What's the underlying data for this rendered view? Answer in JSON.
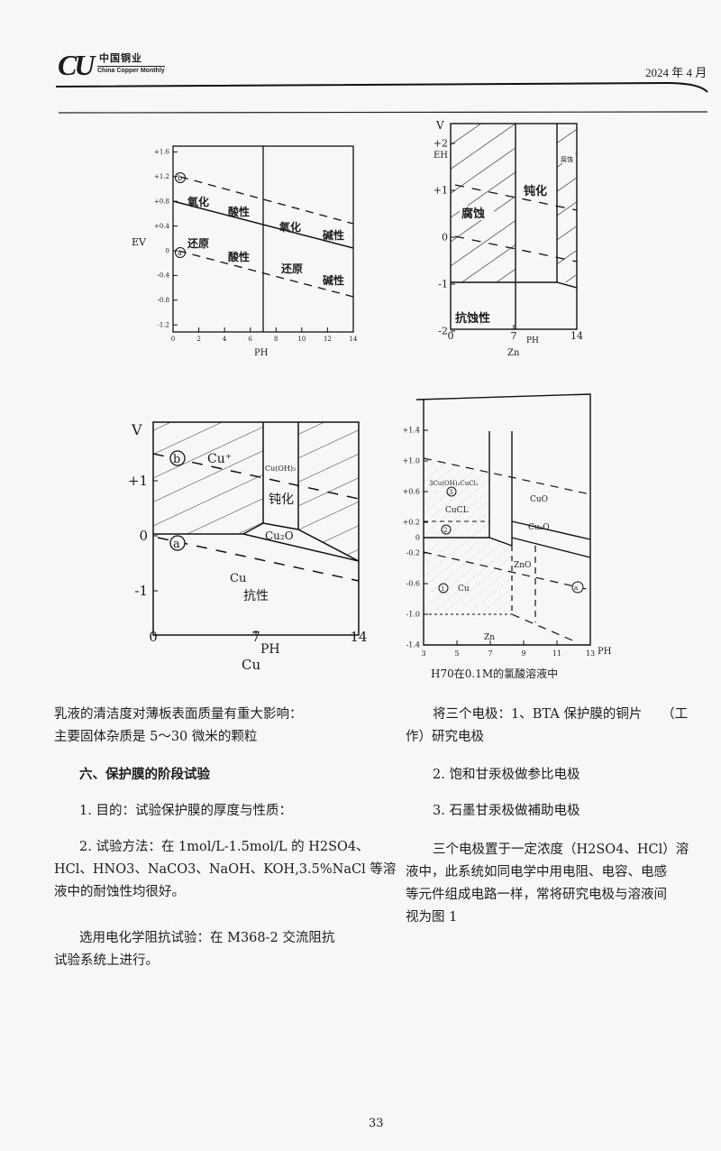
{
  "header": {
    "logo_mark": "CU",
    "logo_cn": "中国铜业",
    "logo_en": "China Copper Monthly",
    "issue_date": "2024 年 4 月"
  },
  "figure1": {
    "y_axis_label": "EV",
    "x_axis_label": "PH",
    "y_ticks": [
      "+1.6",
      "+1.2",
      "+0.8",
      "+0.4",
      "0",
      "-0.4",
      "-0.8",
      "-1.2"
    ],
    "y_tick_values": [
      1.6,
      1.2,
      0.8,
      0.4,
      0,
      -0.4,
      -0.8,
      -1.2
    ],
    "x_ticks": [
      "0",
      "2",
      "4",
      "6",
      "8",
      "10",
      "12",
      "14"
    ],
    "x_tick_values": [
      0,
      2,
      4,
      6,
      8,
      10,
      12,
      14
    ],
    "marker_b": "b",
    "marker_a": "a",
    "labels": {
      "oxidation_acid_1": "氧化",
      "oxidation_acid_2": "酸性",
      "oxidation_base_1": "氧化",
      "oxidation_base_2": "碱性",
      "reduction_acid_1": "还原",
      "reduction_acid_2": "酸性",
      "reduction_base_1": "还原",
      "reduction_base_2": "碱性"
    }
  },
  "figure2": {
    "y_axis_label_v": "V",
    "y_axis_label_eh": "EH",
    "x_axis_label": "PH",
    "element": "Zn",
    "y_ticks": [
      "+2",
      "+1",
      "0",
      "-1",
      "-2"
    ],
    "y_tick_values": [
      2,
      1,
      0,
      -1,
      -2
    ],
    "x_ticks": [
      "0",
      "7",
      "14"
    ],
    "x_tick_values": [
      0,
      7,
      14
    ],
    "labels": {
      "corrosion": "腐蚀",
      "passivation": "钝化",
      "corrosion_right": "腐蚀",
      "immunity": "抗蚀性"
    }
  },
  "figure3": {
    "y_axis_label": "V",
    "x_axis_label": "PH",
    "element": "Cu",
    "y_ticks": [
      "+1",
      "0",
      "-1"
    ],
    "y_tick_values": [
      1,
      0,
      -1
    ],
    "x_ticks": [
      "0",
      "7",
      "14"
    ],
    "x_tick_values": [
      0,
      7,
      14
    ],
    "marker_b": "b",
    "marker_a": "a",
    "labels": {
      "cu_ion": "Cu⁺",
      "cu_oh2": "Cu(OH)₂",
      "passivation": "钝化",
      "cu2o": "Cu₂O",
      "cu": "Cu",
      "immunity": "抗性"
    }
  },
  "figure4": {
    "x_axis_label": "PH",
    "y_ticks": [
      "+1.4",
      "+1.0",
      "+0.6",
      "+0.2",
      "0",
      "-0.2",
      "-0.6",
      "-1.0",
      "-1.4"
    ],
    "y_tick_values": [
      1.4,
      1.0,
      0.6,
      0.2,
      0,
      -0.2,
      -0.6,
      -1.0,
      -1.4
    ],
    "x_ticks": [
      "3",
      "5",
      "7",
      "9",
      "11",
      "13"
    ],
    "x_tick_values": [
      3,
      5,
      7,
      9,
      11,
      13
    ],
    "marker_a": "a",
    "labels": {
      "basic_chloride": "3Cu(OH)₂CuCl₂",
      "region3": "3",
      "cucl": "CuCL",
      "region2": "2",
      "region1": "1",
      "cu": "Cu",
      "cuo": "CuO",
      "cu2o": "Cu₂O",
      "zno": "ZnO",
      "zn": "Zn"
    },
    "caption": "H70在0.1M的氯酸溶液中"
  },
  "left_column": {
    "p1": [
      "乳液的清洁度对薄板表面质量有重大影响：",
      "主要固体杂质是 5～30 微米的颗粒"
    ],
    "section_heading": "六、保护膜的阶段试验",
    "p2": [
      "1. 目的：试验保护膜的厚度与性质："
    ],
    "p3": [
      "2. 试验方法：在 1mol/L-1.5mol/L 的 H2SO4、",
      "HCl、HNO3、NaCO3、NaOH、KOH,3.5%NaCl 等溶",
      "液中的耐蚀性均很好。"
    ],
    "p4": [
      "选用电化学阻抗试验：在 M368-2 交流阻抗",
      "试验系统上进行。"
    ]
  },
  "right_column": {
    "p1": [
      "将三个电极：1、BTA 保护膜的铜片　　（工",
      "作）研究电极"
    ],
    "p2": [
      "2. 饱和甘汞极做参比电极"
    ],
    "p3": [
      "3. 石墨甘汞极做補助电极"
    ],
    "p4": [
      "三个电极置于一定浓度（H2SO4、HCl）溶",
      "液中，此系统如同电学中用电阻、电容、电感",
      "等元件组成电路一样，常将研究电极与溶液间",
      "视为图 1"
    ]
  },
  "page_number": "33"
}
